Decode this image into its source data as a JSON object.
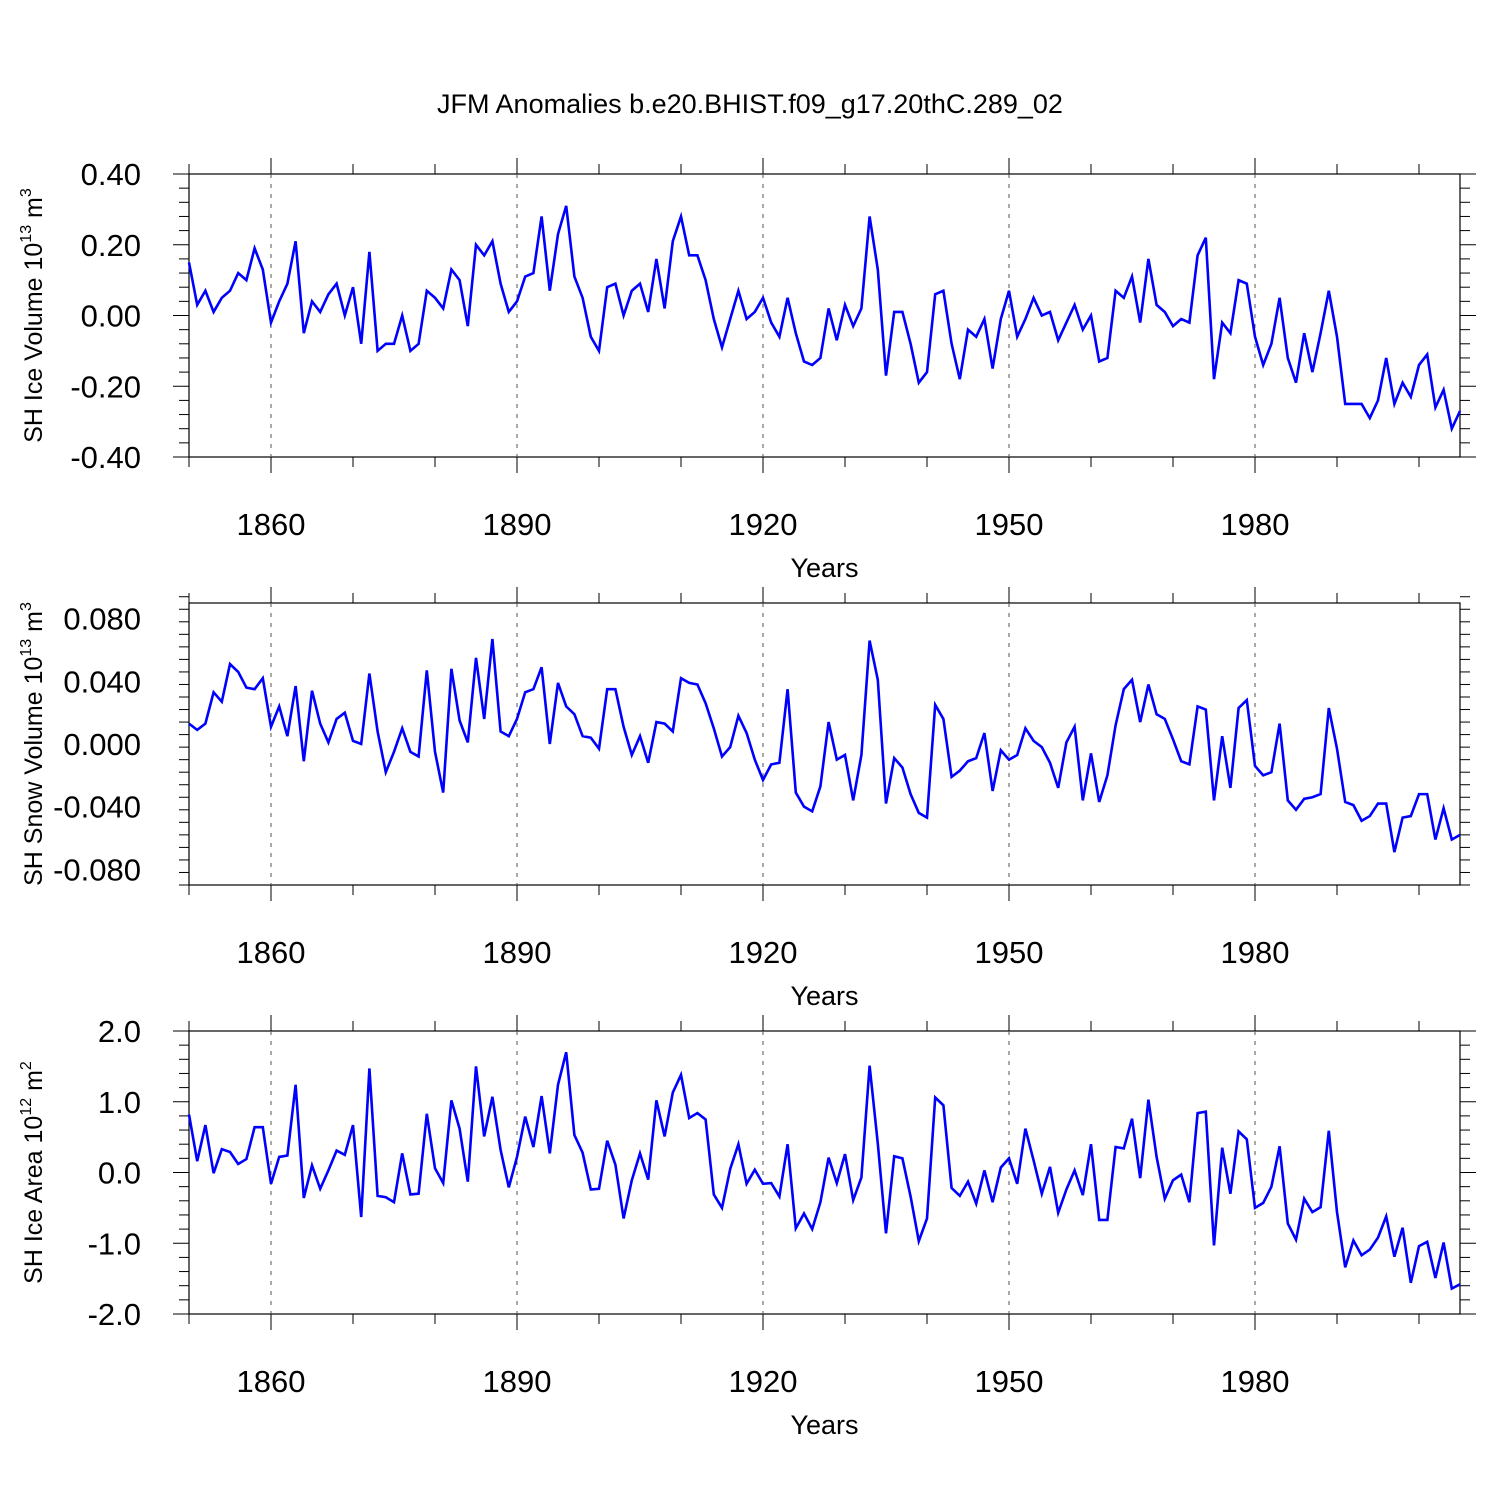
{
  "title": "JFM Anomalies b.e20.BHIST.f09_g17.20thC.289_02",
  "line_color": "#0000ff",
  "chart_data": [
    {
      "type": "line",
      "ylabel_main": "SH Ice Volume 10",
      "ylabel_exp": "13",
      "ylabel_unit": " m",
      "ylabel_unit_exp": "3",
      "xlabel": "Years",
      "xlim": [
        1850,
        2005
      ],
      "ylim": [
        -0.4,
        0.4
      ],
      "x_ticks": [
        1860,
        1890,
        1920,
        1950,
        1980
      ],
      "x_tick_labels": [
        "1860",
        "1890",
        "1920",
        "1950",
        "1980"
      ],
      "y_ticks": [
        -0.4,
        -0.2,
        0.0,
        0.2,
        0.4
      ],
      "y_tick_labels": [
        "-0.40",
        "-0.20",
        "0.00",
        "0.20",
        "0.40"
      ],
      "x_start": 1850,
      "series": [
        {
          "name": "SH Ice Volume",
          "values": [
            0.15,
            0.03,
            0.07,
            0.01,
            0.05,
            0.07,
            0.12,
            0.1,
            0.19,
            0.13,
            -0.02,
            0.04,
            0.09,
            0.21,
            -0.05,
            0.04,
            0.01,
            0.06,
            0.09,
            0.0,
            0.08,
            -0.08,
            0.18,
            -0.1,
            -0.08,
            -0.08,
            0.0,
            -0.1,
            -0.08,
            0.07,
            0.05,
            0.02,
            0.13,
            0.1,
            -0.03,
            0.2,
            0.17,
            0.21,
            0.09,
            0.01,
            0.04,
            0.11,
            0.12,
            0.28,
            0.07,
            0.23,
            0.31,
            0.11,
            0.05,
            -0.06,
            -0.1,
            0.08,
            0.09,
            0.0,
            0.07,
            0.09,
            0.01,
            0.16,
            0.02,
            0.21,
            0.28,
            0.17,
            0.17,
            0.1,
            -0.01,
            -0.09,
            -0.01,
            0.07,
            -0.01,
            0.01,
            0.05,
            -0.02,
            -0.06,
            0.05,
            -0.05,
            -0.13,
            -0.14,
            -0.12,
            0.02,
            -0.07,
            0.03,
            -0.03,
            0.02,
            0.28,
            0.13,
            -0.17,
            0.01,
            0.01,
            -0.08,
            -0.19,
            -0.16,
            0.06,
            0.07,
            -0.08,
            -0.18,
            -0.04,
            -0.06,
            -0.01,
            -0.15,
            -0.01,
            0.07,
            -0.06,
            -0.01,
            0.05,
            0.0,
            0.01,
            -0.07,
            -0.02,
            0.03,
            -0.04,
            0.0,
            -0.13,
            -0.12,
            0.07,
            0.05,
            0.11,
            -0.02,
            0.16,
            0.03,
            0.01,
            -0.03,
            -0.01,
            -0.02,
            0.17,
            0.22,
            -0.18,
            -0.02,
            -0.05,
            0.1,
            0.09,
            -0.06,
            -0.14,
            -0.08,
            0.05,
            -0.12,
            -0.19,
            -0.05,
            -0.16,
            -0.05,
            0.07,
            -0.06,
            -0.25,
            -0.25,
            -0.25,
            -0.29,
            -0.24,
            -0.12,
            -0.25,
            -0.19,
            -0.23,
            -0.14,
            -0.11,
            -0.26,
            -0.21,
            -0.32,
            -0.27
          ]
        }
      ]
    },
    {
      "type": "line",
      "ylabel_main": "SH Snow Volume 10",
      "ylabel_exp": "13",
      "ylabel_unit": " m",
      "ylabel_unit_exp": "3",
      "xlabel": "Years",
      "xlim": [
        1850,
        2005
      ],
      "ylim": [
        -0.09,
        0.09
      ],
      "x_ticks": [
        1860,
        1890,
        1920,
        1950,
        1980
      ],
      "x_tick_labels": [
        "1860",
        "1890",
        "1920",
        "1950",
        "1980"
      ],
      "y_ticks": [
        -0.08,
        -0.04,
        0.0,
        0.04,
        0.08
      ],
      "y_tick_labels": [
        "-0.080",
        "-0.040",
        "0.000",
        "0.040",
        "0.080"
      ],
      "x_start": 1850,
      "series": [
        {
          "name": "SH Snow Volume",
          "values": [
            0.013,
            0.009,
            0.013,
            0.033,
            0.027,
            0.051,
            0.046,
            0.036,
            0.035,
            0.042,
            0.011,
            0.024,
            0.005,
            0.037,
            -0.011,
            0.034,
            0.013,
            0.001,
            0.016,
            0.02,
            0.002,
            0.0,
            0.045,
            0.008,
            -0.018,
            -0.005,
            0.01,
            -0.005,
            -0.008,
            0.047,
            -0.005,
            -0.031,
            0.048,
            0.015,
            0.001,
            0.055,
            0.016,
            0.067,
            0.008,
            0.005,
            0.016,
            0.033,
            0.035,
            0.049,
            0.0,
            0.039,
            0.024,
            0.019,
            0.005,
            0.004,
            -0.003,
            0.035,
            0.035,
            0.011,
            -0.007,
            0.005,
            -0.012,
            0.014,
            0.013,
            0.008,
            0.042,
            0.039,
            0.038,
            0.026,
            0.01,
            -0.008,
            -0.002,
            0.018,
            0.007,
            -0.01,
            -0.023,
            -0.013,
            -0.012,
            0.035,
            -0.031,
            -0.04,
            -0.043,
            -0.027,
            0.014,
            -0.01,
            -0.007,
            -0.036,
            -0.007,
            0.066,
            0.041,
            -0.038,
            -0.009,
            -0.015,
            -0.032,
            -0.044,
            -0.047,
            0.025,
            0.016,
            -0.021,
            -0.017,
            -0.011,
            -0.009,
            0.007,
            -0.03,
            -0.004,
            -0.01,
            -0.007,
            0.01,
            0.002,
            -0.002,
            -0.012,
            -0.028,
            0.001,
            0.011,
            -0.036,
            -0.006,
            -0.037,
            -0.02,
            0.012,
            0.035,
            0.041,
            0.014,
            0.038,
            0.019,
            0.016,
            0.003,
            -0.011,
            -0.013,
            0.024,
            0.022,
            -0.036,
            0.005,
            -0.028,
            0.023,
            0.028,
            -0.014,
            -0.02,
            -0.018,
            0.013,
            -0.036,
            -0.042,
            -0.035,
            -0.034,
            -0.032,
            0.023,
            -0.003,
            -0.037,
            -0.039,
            -0.049,
            -0.046,
            -0.038,
            -0.038,
            -0.069,
            -0.047,
            -0.046,
            -0.032,
            -0.032,
            -0.061,
            -0.041,
            -0.061,
            -0.058
          ]
        }
      ]
    },
    {
      "type": "line",
      "ylabel_main": "SH Ice Area 10",
      "ylabel_exp": "12",
      "ylabel_unit": " m",
      "ylabel_unit_exp": "2",
      "xlabel": "Years",
      "xlim": [
        1850,
        2005
      ],
      "ylim": [
        -2.0,
        2.0
      ],
      "x_ticks": [
        1860,
        1890,
        1920,
        1950,
        1980
      ],
      "x_tick_labels": [
        "1860",
        "1890",
        "1920",
        "1950",
        "1980"
      ],
      "y_ticks": [
        -2.0,
        -1.0,
        0.0,
        1.0,
        2.0
      ],
      "y_tick_labels": [
        "-2.0",
        "-1.0",
        "0.0",
        "1.0",
        "2.0"
      ],
      "x_start": 1850,
      "series": [
        {
          "name": "SH Ice Area",
          "values": [
            0.82,
            0.16,
            0.67,
            -0.01,
            0.33,
            0.29,
            0.12,
            0.19,
            0.64,
            0.64,
            -0.16,
            0.22,
            0.24,
            1.24,
            -0.36,
            0.1,
            -0.23,
            0.03,
            0.31,
            0.25,
            0.67,
            -0.63,
            1.47,
            -0.33,
            -0.35,
            -0.42,
            0.27,
            -0.31,
            -0.3,
            0.83,
            0.06,
            -0.15,
            1.02,
            0.62,
            -0.13,
            1.5,
            0.51,
            1.07,
            0.32,
            -0.21,
            0.22,
            0.79,
            0.36,
            1.08,
            0.27,
            1.24,
            1.7,
            0.53,
            0.28,
            -0.24,
            -0.23,
            0.45,
            0.11,
            -0.65,
            -0.11,
            0.27,
            -0.1,
            1.02,
            0.51,
            1.13,
            1.38,
            0.77,
            0.84,
            0.75,
            -0.31,
            -0.5,
            0.05,
            0.4,
            -0.16,
            0.04,
            -0.16,
            -0.15,
            -0.34,
            0.4,
            -0.79,
            -0.58,
            -0.8,
            -0.42,
            0.21,
            -0.15,
            0.26,
            -0.39,
            -0.07,
            1.51,
            0.41,
            -0.86,
            0.23,
            0.2,
            -0.34,
            -0.97,
            -0.65,
            1.06,
            0.95,
            -0.22,
            -0.33,
            -0.13,
            -0.44,
            0.03,
            -0.42,
            0.07,
            0.2,
            -0.16,
            0.62,
            0.17,
            -0.3,
            0.08,
            -0.57,
            -0.24,
            0.03,
            -0.32,
            0.4,
            -0.67,
            -0.67,
            0.36,
            0.34,
            0.76,
            -0.08,
            1.03,
            0.22,
            -0.37,
            -0.11,
            -0.03,
            -0.42,
            0.84,
            0.86,
            -1.03,
            0.35,
            -0.3,
            0.58,
            0.47,
            -0.5,
            -0.43,
            -0.2,
            0.37,
            -0.72,
            -0.95,
            -0.37,
            -0.56,
            -0.49,
            0.59,
            -0.56,
            -1.34,
            -0.96,
            -1.17,
            -1.09,
            -0.92,
            -0.62,
            -1.19,
            -0.78,
            -1.56,
            -1.04,
            -0.98,
            -1.49,
            -0.99,
            -1.64,
            -1.58
          ]
        }
      ]
    }
  ]
}
